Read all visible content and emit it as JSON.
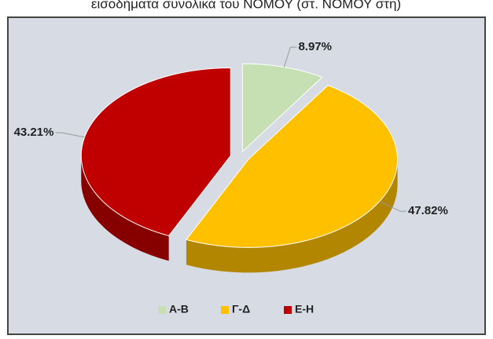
{
  "chart_data": {
    "type": "pie",
    "title": "εισοδήματα συνολικά του ΝΟΜΟΥ (στ. ΝΟΜΟΥ στη)",
    "categories": [
      "Α-Β",
      "Γ-Δ",
      "Ε-Η"
    ],
    "values": [
      8.97,
      47.82,
      43.21
    ],
    "value_labels": [
      "8.97%",
      "47.82%",
      "43.21%"
    ],
    "colors": [
      "#c6e0b4",
      "#ffc000",
      "#c00000"
    ],
    "legend": "bottom"
  }
}
